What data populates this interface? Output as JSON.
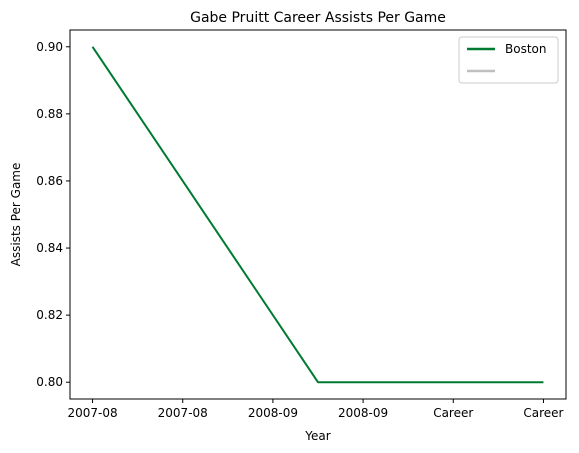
{
  "chart_data": {
    "type": "line",
    "title": "Gabe Pruitt Career Assists Per Game",
    "xlabel": "Year",
    "ylabel": "Assists Per Game",
    "x_tick_labels": [
      "2007-08",
      "2007-08",
      "2008-09",
      "2008-09",
      "Career",
      "Career"
    ],
    "x_range": [
      -0.25,
      5.25
    ],
    "ylim": [
      0.795,
      0.905
    ],
    "y_ticks": [
      0.8,
      0.82,
      0.84,
      0.86,
      0.88,
      0.9
    ],
    "y_tick_labels": [
      "0.80",
      "0.82",
      "0.84",
      "0.86",
      "0.88",
      "0.90"
    ],
    "series": [
      {
        "name": "Boston",
        "color": "#007a33",
        "x": [
          0,
          2.5,
          5
        ],
        "y": [
          0.9,
          0.8,
          0.8
        ]
      },
      {
        "name": "",
        "color": "#bfbfbf",
        "x": [],
        "y": []
      }
    ],
    "grid": false,
    "legend_position": "top-right"
  }
}
